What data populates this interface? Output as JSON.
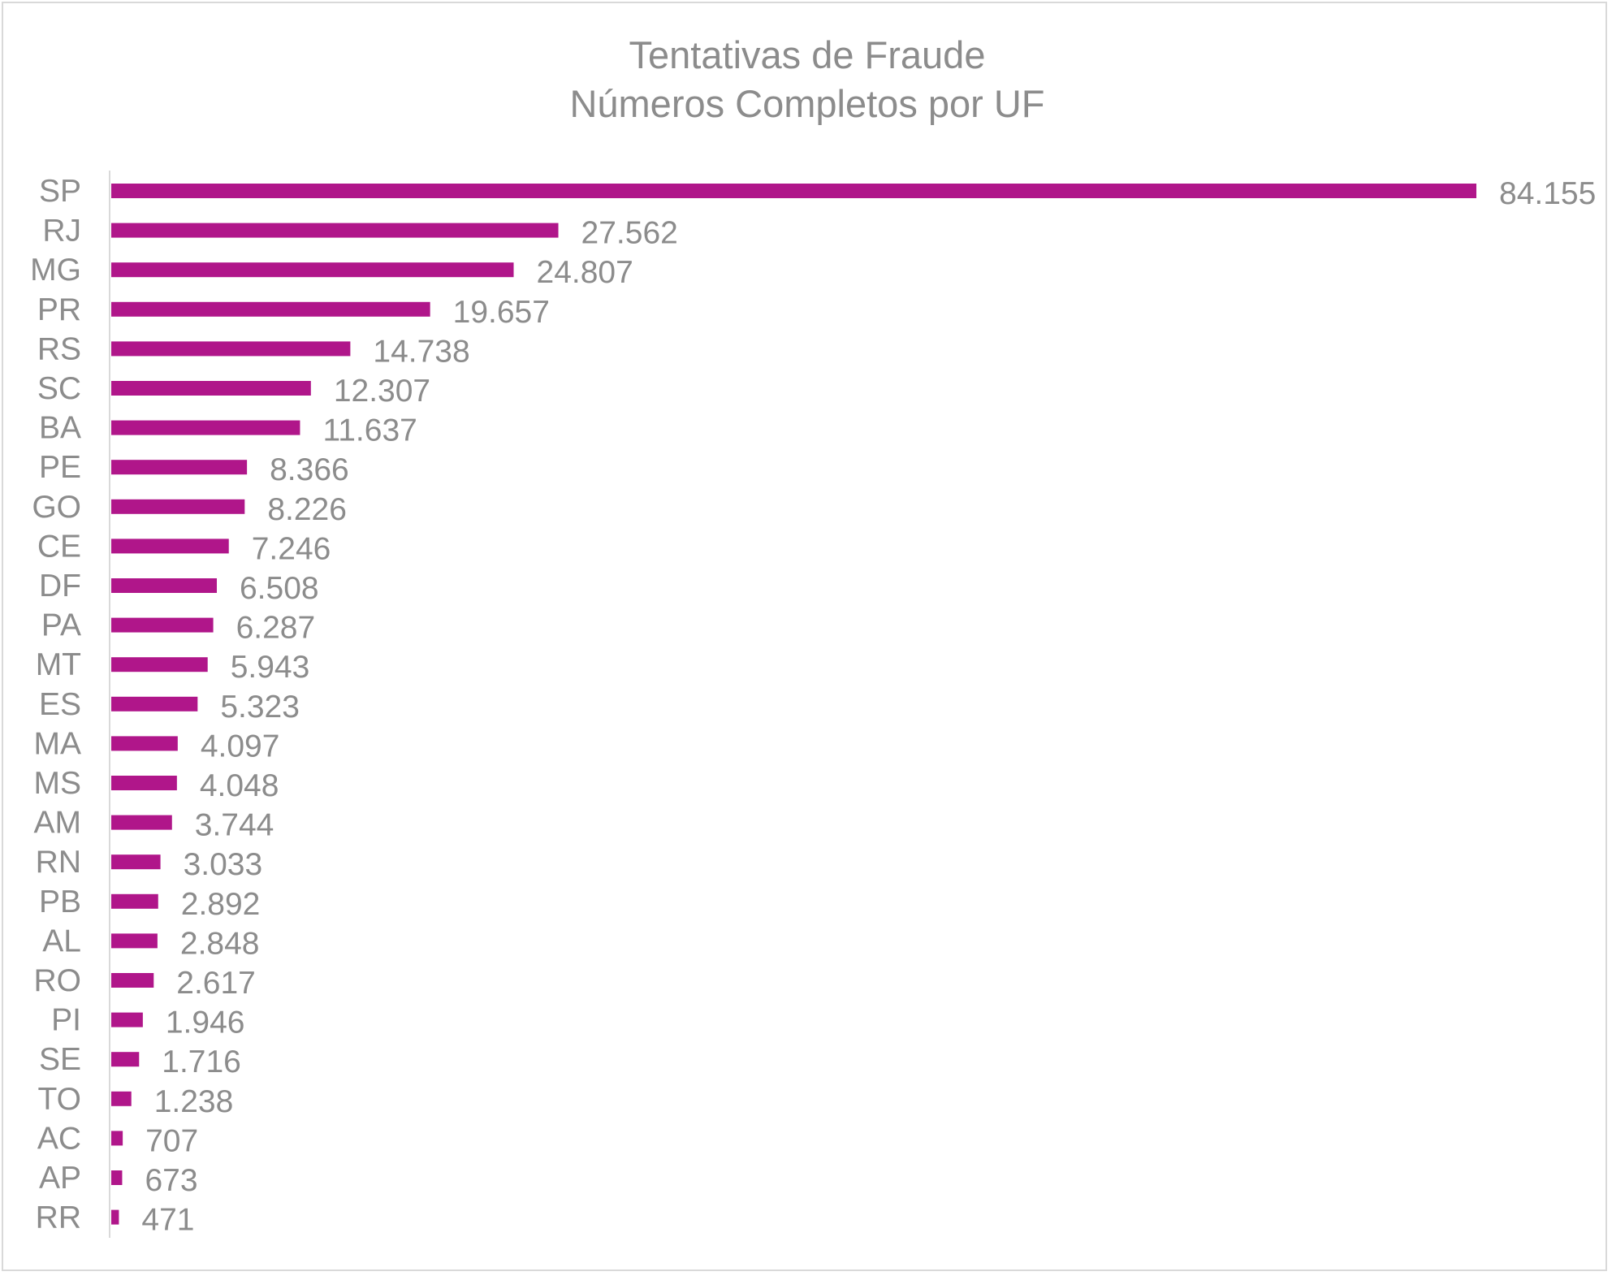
{
  "chart_data": {
    "type": "bar",
    "orientation": "horizontal",
    "title": "Tentativas de Fraude",
    "subtitle": "Números Completos por UF",
    "categories": [
      "SP",
      "RJ",
      "MG",
      "PR",
      "RS",
      "SC",
      "BA",
      "PE",
      "GO",
      "CE",
      "DF",
      "PA",
      "MT",
      "ES",
      "MA",
      "MS",
      "AM",
      "RN",
      "PB",
      "AL",
      "RO",
      "PI",
      "SE",
      "TO",
      "AC",
      "AP",
      "RR"
    ],
    "values": [
      84155,
      27562,
      24807,
      19657,
      14738,
      12307,
      11637,
      8366,
      8226,
      7246,
      6508,
      6287,
      5943,
      5323,
      4097,
      4048,
      3744,
      3033,
      2892,
      2848,
      2617,
      1946,
      1716,
      1238,
      707,
      673,
      471
    ],
    "value_labels": [
      "84.155",
      "27.562",
      "24.807",
      "19.657",
      "14.738",
      "12.307",
      "11.637",
      "8.366",
      "8.226",
      "7.246",
      "6.508",
      "6.287",
      "5.943",
      "5.323",
      "4.097",
      "4.048",
      "3.744",
      "3.033",
      "2.892",
      "2.848",
      "2.617",
      "1.946",
      "1.716",
      "1.238",
      "707",
      "673",
      "471"
    ],
    "xlim": [
      0,
      84155
    ],
    "grid": false,
    "legend": "none",
    "bar_color": "#b0168a"
  }
}
